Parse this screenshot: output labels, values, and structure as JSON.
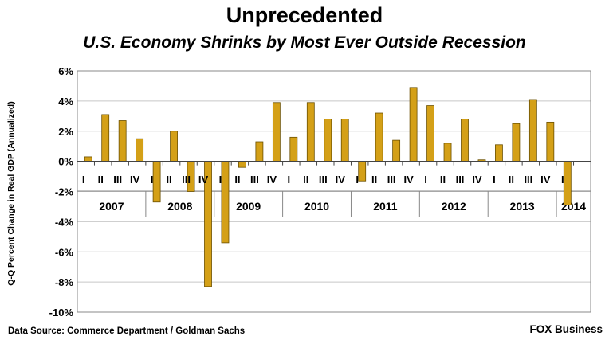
{
  "header": {
    "title": "Unprecedented",
    "subtitle": "U.S. Economy Shrinks by Most Ever Outside Recession"
  },
  "footer": {
    "source": "Data Source: Commerce Department / Goldman Sachs",
    "brand": "FOX Business"
  },
  "colors": {
    "bar": "#D4A017",
    "bar_stroke": "#6b5000",
    "grid": "#c8c8c8"
  },
  "chart_data": {
    "type": "bar",
    "title": "Unprecedented",
    "subtitle": "U.S. Economy Shrinks by Most Ever Outside Recession",
    "ylabel": "Q-Q Percent Change in Real GDP (Annualized)",
    "xlabel": "",
    "ylim": [
      -10,
      6
    ],
    "ytick_step": 2,
    "ytick_labels": [
      "-10%",
      "-8%",
      "-6%",
      "-4%",
      "-2%",
      "0%",
      "2%",
      "4%",
      "6%"
    ],
    "grid": true,
    "legend": "none",
    "quarter_labels": [
      "I",
      "II",
      "III",
      "IV"
    ],
    "years": [
      {
        "year": "2007",
        "values": [
          0.3,
          3.1,
          2.7,
          1.5
        ]
      },
      {
        "year": "2008",
        "values": [
          -2.7,
          2.0,
          -2.0,
          -8.3
        ]
      },
      {
        "year": "2009",
        "values": [
          -5.4,
          -0.4,
          1.3,
          3.9
        ]
      },
      {
        "year": "2010",
        "values": [
          1.6,
          3.9,
          2.8,
          2.8
        ]
      },
      {
        "year": "2011",
        "values": [
          -1.3,
          3.2,
          1.4,
          4.9
        ]
      },
      {
        "year": "2012",
        "values": [
          3.7,
          1.2,
          2.8,
          0.1
        ]
      },
      {
        "year": "2013",
        "values": [
          1.1,
          2.5,
          4.1,
          2.6
        ]
      },
      {
        "year": "2014",
        "values": [
          -2.9
        ]
      }
    ]
  }
}
